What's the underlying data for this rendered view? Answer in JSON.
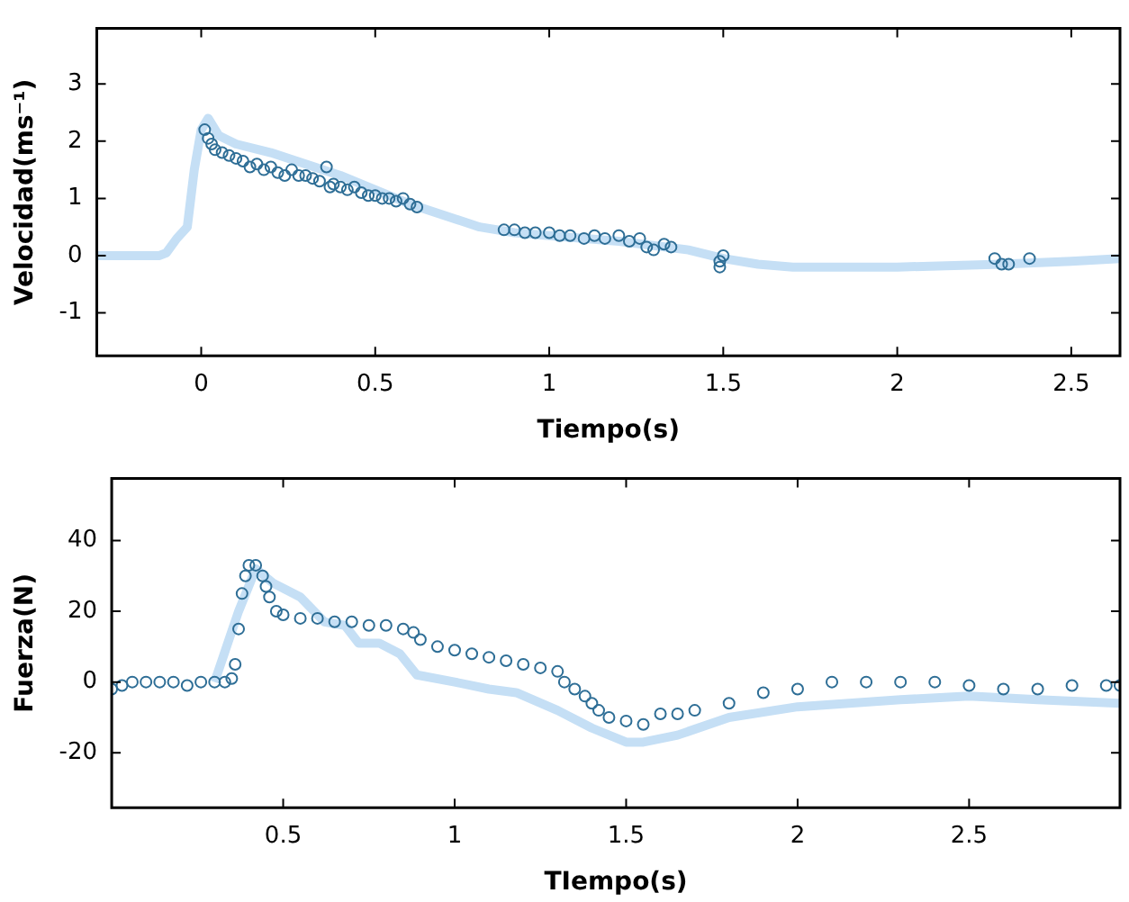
{
  "chart_data": [
    {
      "type": "line",
      "xlabel": "Tiempo(s)",
      "ylabel": "Velocidad(ms⁻¹)",
      "xlim": [
        -0.3,
        2.64
      ],
      "xticks": [
        0,
        0.5,
        1,
        1.5,
        2,
        2.5
      ],
      "ylim": [
        -1.75,
        3.97
      ],
      "yticks": [
        -1,
        0,
        1,
        2,
        3
      ],
      "grid": false,
      "legend": false,
      "series": [
        {
          "marker": "none",
          "color": "#c5dff5",
          "x": [
            -0.3,
            -0.12,
            -0.1,
            -0.07,
            -0.04,
            -0.02,
            0,
            0.02,
            0.05,
            0.1,
            0.2,
            0.3,
            0.4,
            0.5,
            0.6,
            0.7,
            0.8,
            0.9,
            1.0,
            1.2,
            1.4,
            1.5,
            1.6,
            1.7,
            2.0,
            2.3,
            2.5,
            2.64
          ],
          "values": [
            0,
            0,
            0.05,
            0.3,
            0.5,
            1.5,
            2.2,
            2.4,
            2.1,
            1.95,
            1.8,
            1.6,
            1.4,
            1.15,
            0.9,
            0.7,
            0.5,
            0.4,
            0.35,
            0.25,
            0.1,
            -0.05,
            -0.15,
            -0.2,
            -0.2,
            -0.15,
            -0.1,
            -0.05
          ]
        },
        {
          "type": "scatter",
          "marker": "circle",
          "color": "#2e6e96",
          "x": [
            0.01,
            0.02,
            0.03,
            0.04,
            0.06,
            0.08,
            0.1,
            0.12,
            0.14,
            0.16,
            0.18,
            0.2,
            0.22,
            0.24,
            0.26,
            0.28,
            0.3,
            0.32,
            0.34,
            0.36,
            0.37,
            0.38,
            0.4,
            0.42,
            0.44,
            0.46,
            0.48,
            0.5,
            0.52,
            0.54,
            0.56,
            0.58,
            0.6,
            0.62,
            0.87,
            0.9,
            0.93,
            0.96,
            1.0,
            1.03,
            1.06,
            1.1,
            1.13,
            1.16,
            1.2,
            1.23,
            1.26,
            1.28,
            1.3,
            1.33,
            1.35,
            1.49,
            1.49,
            1.5,
            2.28,
            2.3,
            2.32,
            2.38
          ],
          "values": [
            2.2,
            2.05,
            1.95,
            1.85,
            1.8,
            1.75,
            1.7,
            1.65,
            1.55,
            1.6,
            1.5,
            1.55,
            1.45,
            1.4,
            1.5,
            1.4,
            1.4,
            1.35,
            1.3,
            1.55,
            1.2,
            1.25,
            1.2,
            1.15,
            1.2,
            1.1,
            1.05,
            1.05,
            1.0,
            1.0,
            0.95,
            1.0,
            0.9,
            0.85,
            0.45,
            0.45,
            0.4,
            0.4,
            0.4,
            0.35,
            0.35,
            0.3,
            0.35,
            0.3,
            0.35,
            0.25,
            0.3,
            0.15,
            0.1,
            0.2,
            0.15,
            -0.1,
            -0.2,
            0,
            -0.05,
            -0.15,
            -0.15,
            -0.05
          ]
        }
      ]
    },
    {
      "type": "line",
      "xlabel": "TIempo(s)",
      "ylabel": "Fuerza(N)",
      "xlim": [
        0,
        2.94
      ],
      "xticks": [
        0.5,
        1,
        1.5,
        2,
        2.5
      ],
      "ylim": [
        -35.5,
        57.5
      ],
      "yticks": [
        -20,
        0,
        20,
        40
      ],
      "grid": false,
      "legend": false,
      "series": [
        {
          "marker": "none",
          "color": "#c5dff5",
          "x": [
            0.3,
            0.37,
            0.42,
            0.47,
            0.55,
            0.62,
            0.68,
            0.72,
            0.78,
            0.84,
            0.89,
            1.0,
            1.1,
            1.18,
            1.3,
            1.4,
            1.5,
            1.55,
            1.65,
            1.8,
            2.0,
            2.3,
            2.5,
            2.7,
            2.94
          ],
          "values": [
            0,
            20,
            32,
            28,
            24,
            17,
            16,
            11,
            11,
            8,
            2,
            0,
            -2,
            -3,
            -8,
            -13,
            -17,
            -17,
            -15,
            -10,
            -7,
            -5,
            -4,
            -5,
            -6
          ]
        },
        {
          "type": "scatter",
          "marker": "circle",
          "color": "#2e6e96",
          "x": [
            0,
            0.03,
            0.06,
            0.1,
            0.14,
            0.18,
            0.22,
            0.26,
            0.3,
            0.33,
            0.35,
            0.36,
            0.37,
            0.38,
            0.39,
            0.4,
            0.42,
            0.44,
            0.45,
            0.46,
            0.48,
            0.5,
            0.55,
            0.6,
            0.65,
            0.7,
            0.75,
            0.8,
            0.85,
            0.88,
            0.9,
            0.95,
            1.0,
            1.05,
            1.1,
            1.15,
            1.2,
            1.25,
            1.3,
            1.32,
            1.35,
            1.38,
            1.4,
            1.42,
            1.45,
            1.5,
            1.55,
            1.6,
            1.65,
            1.7,
            1.8,
            1.9,
            2.0,
            2.1,
            2.2,
            2.3,
            2.4,
            2.5,
            2.6,
            2.7,
            2.8,
            2.9,
            2.94
          ],
          "values": [
            -2,
            -1,
            0,
            0,
            0,
            0,
            -1,
            0,
            0,
            0,
            1,
            5,
            15,
            25,
            30,
            33,
            33,
            30,
            27,
            24,
            20,
            19,
            18,
            18,
            17,
            17,
            16,
            16,
            15,
            14,
            12,
            10,
            9,
            8,
            7,
            6,
            5,
            4,
            3,
            0,
            -2,
            -4,
            -6,
            -8,
            -10,
            -11,
            -12,
            -9,
            -9,
            -8,
            -6,
            -3,
            -2,
            0,
            0,
            0,
            0,
            -1,
            -2,
            -2,
            -1,
            -1,
            -1
          ]
        }
      ]
    }
  ]
}
